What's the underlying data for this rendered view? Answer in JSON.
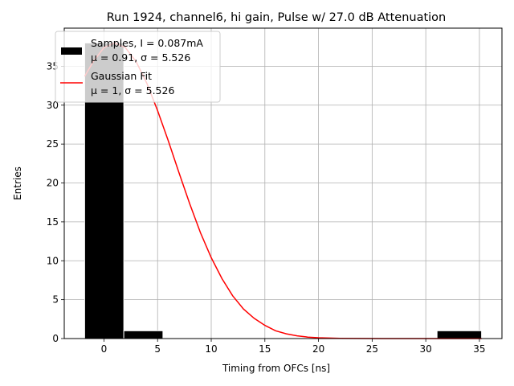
{
  "chart_data": {
    "type": "bar",
    "title": "Run 1924, channel6, hi gain, Pulse w/ 27.0 dB Attenuation",
    "xlabel": "Timing from OFCs [ns]",
    "ylabel": "Entries",
    "xlim": [
      -3.7,
      37.1
    ],
    "ylim": [
      0,
      39.9
    ],
    "xticks": [
      0,
      5,
      10,
      15,
      20,
      25,
      30,
      35
    ],
    "yticks": [
      0,
      5,
      10,
      15,
      20,
      25,
      30,
      35
    ],
    "grid": true,
    "legend_position": "top-left",
    "histogram": {
      "name_line1": "Samples, I = 0.087mA",
      "name_line2": "μ = 0.91, σ = 5.526",
      "color": "#000000",
      "edge_color": "#ffffff",
      "bins": [
        {
          "x0": -1.8,
          "x1": 1.85,
          "count": 38
        },
        {
          "x0": 1.85,
          "x1": 5.5,
          "count": 1
        },
        {
          "x0": 5.5,
          "x1": 9.15,
          "count": 0
        },
        {
          "x0": 9.15,
          "x1": 12.8,
          "count": 0
        },
        {
          "x0": 12.8,
          "x1": 16.45,
          "count": 0
        },
        {
          "x0": 16.45,
          "x1": 20.1,
          "count": 0
        },
        {
          "x0": 20.1,
          "x1": 23.75,
          "count": 0
        },
        {
          "x0": 23.75,
          "x1": 27.4,
          "count": 0
        },
        {
          "x0": 27.4,
          "x1": 31.05,
          "count": 0
        },
        {
          "x0": 31.05,
          "x1": 35.2,
          "count": 1
        }
      ]
    },
    "fit": {
      "name_line1": "Gaussian Fit",
      "name_line2": "μ = 1, σ = 5.526",
      "color": "#ff0000",
      "x": [
        -1.8,
        -1.0,
        0.0,
        1.0,
        2.0,
        3.0,
        4.0,
        5.0,
        6.0,
        7.0,
        8.0,
        9.0,
        10.0,
        11.0,
        12.0,
        13.0,
        14.0,
        15.0,
        16.0,
        17.0,
        18.0,
        19.0,
        20.0,
        22.0,
        24.0,
        26.0,
        28.0,
        30.0,
        32.0,
        35.2
      ],
      "y": [
        33.7,
        35.6,
        37.4,
        38.0,
        37.4,
        35.6,
        32.8,
        29.3,
        25.4,
        21.3,
        17.3,
        13.6,
        10.4,
        7.7,
        5.5,
        3.8,
        2.6,
        1.7,
        1.0,
        0.61,
        0.35,
        0.19,
        0.1,
        0.03,
        0.01,
        0.0,
        0.0,
        0.0,
        0.0,
        0.0
      ]
    }
  }
}
